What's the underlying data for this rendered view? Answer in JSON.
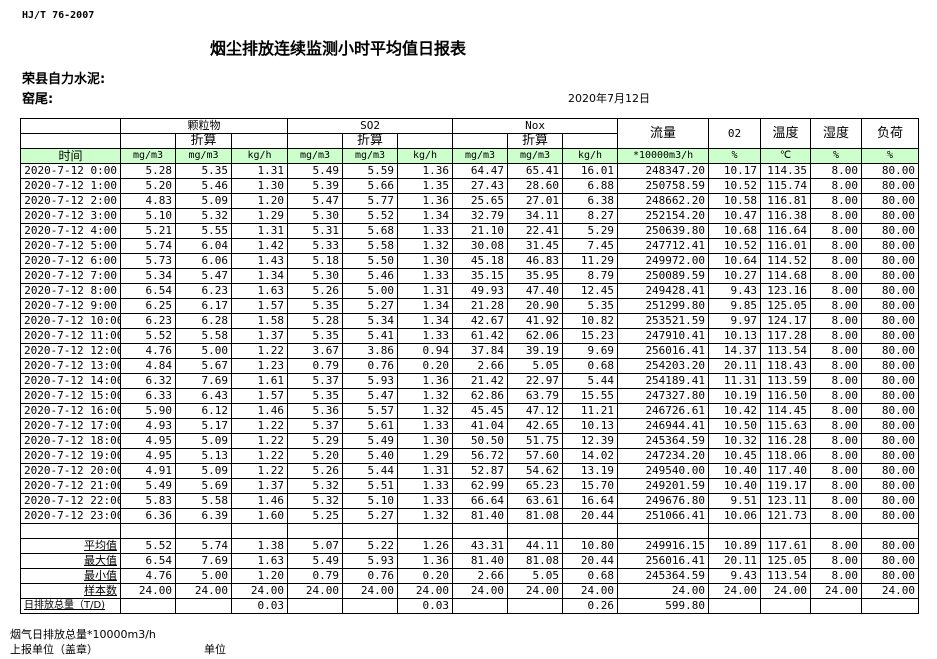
{
  "header": {
    "standard": "HJ/T  76-2007",
    "title": "烟尘排放连续监测小时平均值日报表",
    "company": "荣县自力水泥:",
    "kiln": "窑尾:",
    "date": "2020年7月12日"
  },
  "table": {
    "groups": {
      "particulate": "颗粒物",
      "so2": "SO2",
      "nox": "Nox",
      "flow": "流量",
      "o2": "02",
      "temp": "温度",
      "humidity": "湿度",
      "load": "负荷",
      "converted": "折算"
    },
    "units": [
      "时间",
      "mg/m3",
      "mg/m3",
      "kg/h",
      "mg/m3",
      "mg/m3",
      "kg/h",
      "mg/m3",
      "mg/m3",
      "kg/h",
      "*10000m3/h",
      "%",
      "℃",
      "%",
      "%"
    ],
    "rows": [
      [
        "2020-7-12 0:00",
        "5.28",
        "5.35",
        "1.31",
        "5.49",
        "5.59",
        "1.36",
        "64.47",
        "65.41",
        "16.01",
        "248347.20",
        "10.17",
        "114.35",
        "8.00",
        "80.00"
      ],
      [
        "2020-7-12 1:00",
        "5.20",
        "5.46",
        "1.30",
        "5.39",
        "5.66",
        "1.35",
        "27.43",
        "28.60",
        "6.88",
        "250758.59",
        "10.52",
        "115.74",
        "8.00",
        "80.00"
      ],
      [
        "2020-7-12 2:00",
        "4.83",
        "5.09",
        "1.20",
        "5.47",
        "5.77",
        "1.36",
        "25.65",
        "27.01",
        "6.38",
        "248662.20",
        "10.58",
        "116.81",
        "8.00",
        "80.00"
      ],
      [
        "2020-7-12 3:00",
        "5.10",
        "5.32",
        "1.29",
        "5.30",
        "5.52",
        "1.34",
        "32.79",
        "34.11",
        "8.27",
        "252154.20",
        "10.47",
        "116.38",
        "8.00",
        "80.00"
      ],
      [
        "2020-7-12 4:00",
        "5.21",
        "5.55",
        "1.31",
        "5.31",
        "5.68",
        "1.33",
        "21.10",
        "22.41",
        "5.29",
        "250639.80",
        "10.68",
        "116.64",
        "8.00",
        "80.00"
      ],
      [
        "2020-7-12 5:00",
        "5.74",
        "6.04",
        "1.42",
        "5.33",
        "5.58",
        "1.32",
        "30.08",
        "31.45",
        "7.45",
        "247712.41",
        "10.52",
        "116.01",
        "8.00",
        "80.00"
      ],
      [
        "2020-7-12 6:00",
        "5.73",
        "6.06",
        "1.43",
        "5.18",
        "5.50",
        "1.30",
        "45.18",
        "46.83",
        "11.29",
        "249972.00",
        "10.64",
        "114.52",
        "8.00",
        "80.00"
      ],
      [
        "2020-7-12 7:00",
        "5.34",
        "5.47",
        "1.34",
        "5.30",
        "5.46",
        "1.33",
        "35.15",
        "35.95",
        "8.79",
        "250089.59",
        "10.27",
        "114.68",
        "8.00",
        "80.00"
      ],
      [
        "2020-7-12 8:00",
        "6.54",
        "6.23",
        "1.63",
        "5.26",
        "5.00",
        "1.31",
        "49.93",
        "47.40",
        "12.45",
        "249428.41",
        "9.43",
        "123.16",
        "8.00",
        "80.00"
      ],
      [
        "2020-7-12 9:00",
        "6.25",
        "6.17",
        "1.57",
        "5.35",
        "5.27",
        "1.34",
        "21.28",
        "20.90",
        "5.35",
        "251299.80",
        "9.85",
        "125.05",
        "8.00",
        "80.00"
      ],
      [
        "2020-7-12 10:00",
        "6.23",
        "6.28",
        "1.58",
        "5.28",
        "5.34",
        "1.34",
        "42.67",
        "41.92",
        "10.82",
        "253521.59",
        "9.97",
        "124.17",
        "8.00",
        "80.00"
      ],
      [
        "2020-7-12 11:00",
        "5.52",
        "5.58",
        "1.37",
        "5.35",
        "5.41",
        "1.33",
        "61.42",
        "62.06",
        "15.23",
        "247910.41",
        "10.13",
        "117.28",
        "8.00",
        "80.00"
      ],
      [
        "2020-7-12 12:00",
        "4.76",
        "5.00",
        "1.22",
        "3.67",
        "3.86",
        "0.94",
        "37.84",
        "39.19",
        "9.69",
        "256016.41",
        "14.37",
        "113.54",
        "8.00",
        "80.00"
      ],
      [
        "2020-7-12 13:00",
        "4.84",
        "5.67",
        "1.23",
        "0.79",
        "0.76",
        "0.20",
        "2.66",
        "5.05",
        "0.68",
        "254203.20",
        "20.11",
        "118.43",
        "8.00",
        "80.00"
      ],
      [
        "2020-7-12 14:00",
        "6.32",
        "7.69",
        "1.61",
        "5.37",
        "5.93",
        "1.36",
        "21.42",
        "22.97",
        "5.44",
        "254189.41",
        "11.31",
        "113.59",
        "8.00",
        "80.00"
      ],
      [
        "2020-7-12 15:00",
        "6.33",
        "6.43",
        "1.57",
        "5.35",
        "5.47",
        "1.32",
        "62.86",
        "63.79",
        "15.55",
        "247327.80",
        "10.19",
        "116.50",
        "8.00",
        "80.00"
      ],
      [
        "2020-7-12 16:00",
        "5.90",
        "6.12",
        "1.46",
        "5.36",
        "5.57",
        "1.32",
        "45.45",
        "47.12",
        "11.21",
        "246726.61",
        "10.42",
        "114.45",
        "8.00",
        "80.00"
      ],
      [
        "2020-7-12 17:00",
        "4.93",
        "5.17",
        "1.22",
        "5.37",
        "5.61",
        "1.33",
        "41.04",
        "42.65",
        "10.13",
        "246944.41",
        "10.50",
        "115.63",
        "8.00",
        "80.00"
      ],
      [
        "2020-7-12 18:00",
        "4.95",
        "5.09",
        "1.22",
        "5.29",
        "5.49",
        "1.30",
        "50.50",
        "51.75",
        "12.39",
        "245364.59",
        "10.32",
        "116.28",
        "8.00",
        "80.00"
      ],
      [
        "2020-7-12 19:00",
        "4.95",
        "5.13",
        "1.22",
        "5.20",
        "5.40",
        "1.29",
        "56.72",
        "57.60",
        "14.02",
        "247234.20",
        "10.45",
        "118.06",
        "8.00",
        "80.00"
      ],
      [
        "2020-7-12 20:00",
        "4.91",
        "5.09",
        "1.22",
        "5.26",
        "5.44",
        "1.31",
        "52.87",
        "54.62",
        "13.19",
        "249540.00",
        "10.40",
        "117.40",
        "8.00",
        "80.00"
      ],
      [
        "2020-7-12 21:00",
        "5.49",
        "5.69",
        "1.37",
        "5.32",
        "5.51",
        "1.33",
        "62.99",
        "65.23",
        "15.70",
        "249201.59",
        "10.40",
        "119.17",
        "8.00",
        "80.00"
      ],
      [
        "2020-7-12 22:00",
        "5.83",
        "5.58",
        "1.46",
        "5.32",
        "5.10",
        "1.33",
        "66.64",
        "63.61",
        "16.64",
        "249676.80",
        "9.51",
        "123.11",
        "8.00",
        "80.00"
      ],
      [
        "2020-7-12 23:00",
        "6.36",
        "6.39",
        "1.60",
        "5.25",
        "5.27",
        "1.32",
        "81.40",
        "81.08",
        "20.44",
        "251066.41",
        "10.06",
        "121.73",
        "8.00",
        "80.00"
      ]
    ],
    "stats": [
      [
        "平均值",
        "5.52",
        "5.74",
        "1.38",
        "5.07",
        "5.22",
        "1.26",
        "43.31",
        "44.11",
        "10.80",
        "249916.15",
        "10.89",
        "117.61",
        "8.00",
        "80.00"
      ],
      [
        "最大值",
        "6.54",
        "7.69",
        "1.63",
        "5.49",
        "5.93",
        "1.36",
        "81.40",
        "81.08",
        "20.44",
        "256016.41",
        "20.11",
        "125.05",
        "8.00",
        "80.00"
      ],
      [
        "最小值",
        "4.76",
        "5.00",
        "1.20",
        "0.79",
        "0.76",
        "0.20",
        "2.66",
        "5.05",
        "0.68",
        "245364.59",
        "9.43",
        "113.54",
        "8.00",
        "80.00"
      ],
      [
        "样本数",
        "24.00",
        "24.00",
        "24.00",
        "24.00",
        "24.00",
        "24.00",
        "24.00",
        "24.00",
        "24.00",
        "24.00",
        "24.00",
        "24.00",
        "24.00",
        "24.00"
      ],
      [
        "日排放总量（T/D)",
        "",
        "",
        "0.03",
        "",
        "",
        "0.03",
        "",
        "",
        "0.26",
        "599.80",
        "",
        "",
        "",
        ""
      ]
    ]
  },
  "footer": {
    "flue_gas_total": "烟气日排放总量*10000m3/h",
    "reporting_unit": "上报单位（盖章）",
    "unit": "单位"
  },
  "colors": {
    "unit_row_bg": "#ccffcc"
  }
}
